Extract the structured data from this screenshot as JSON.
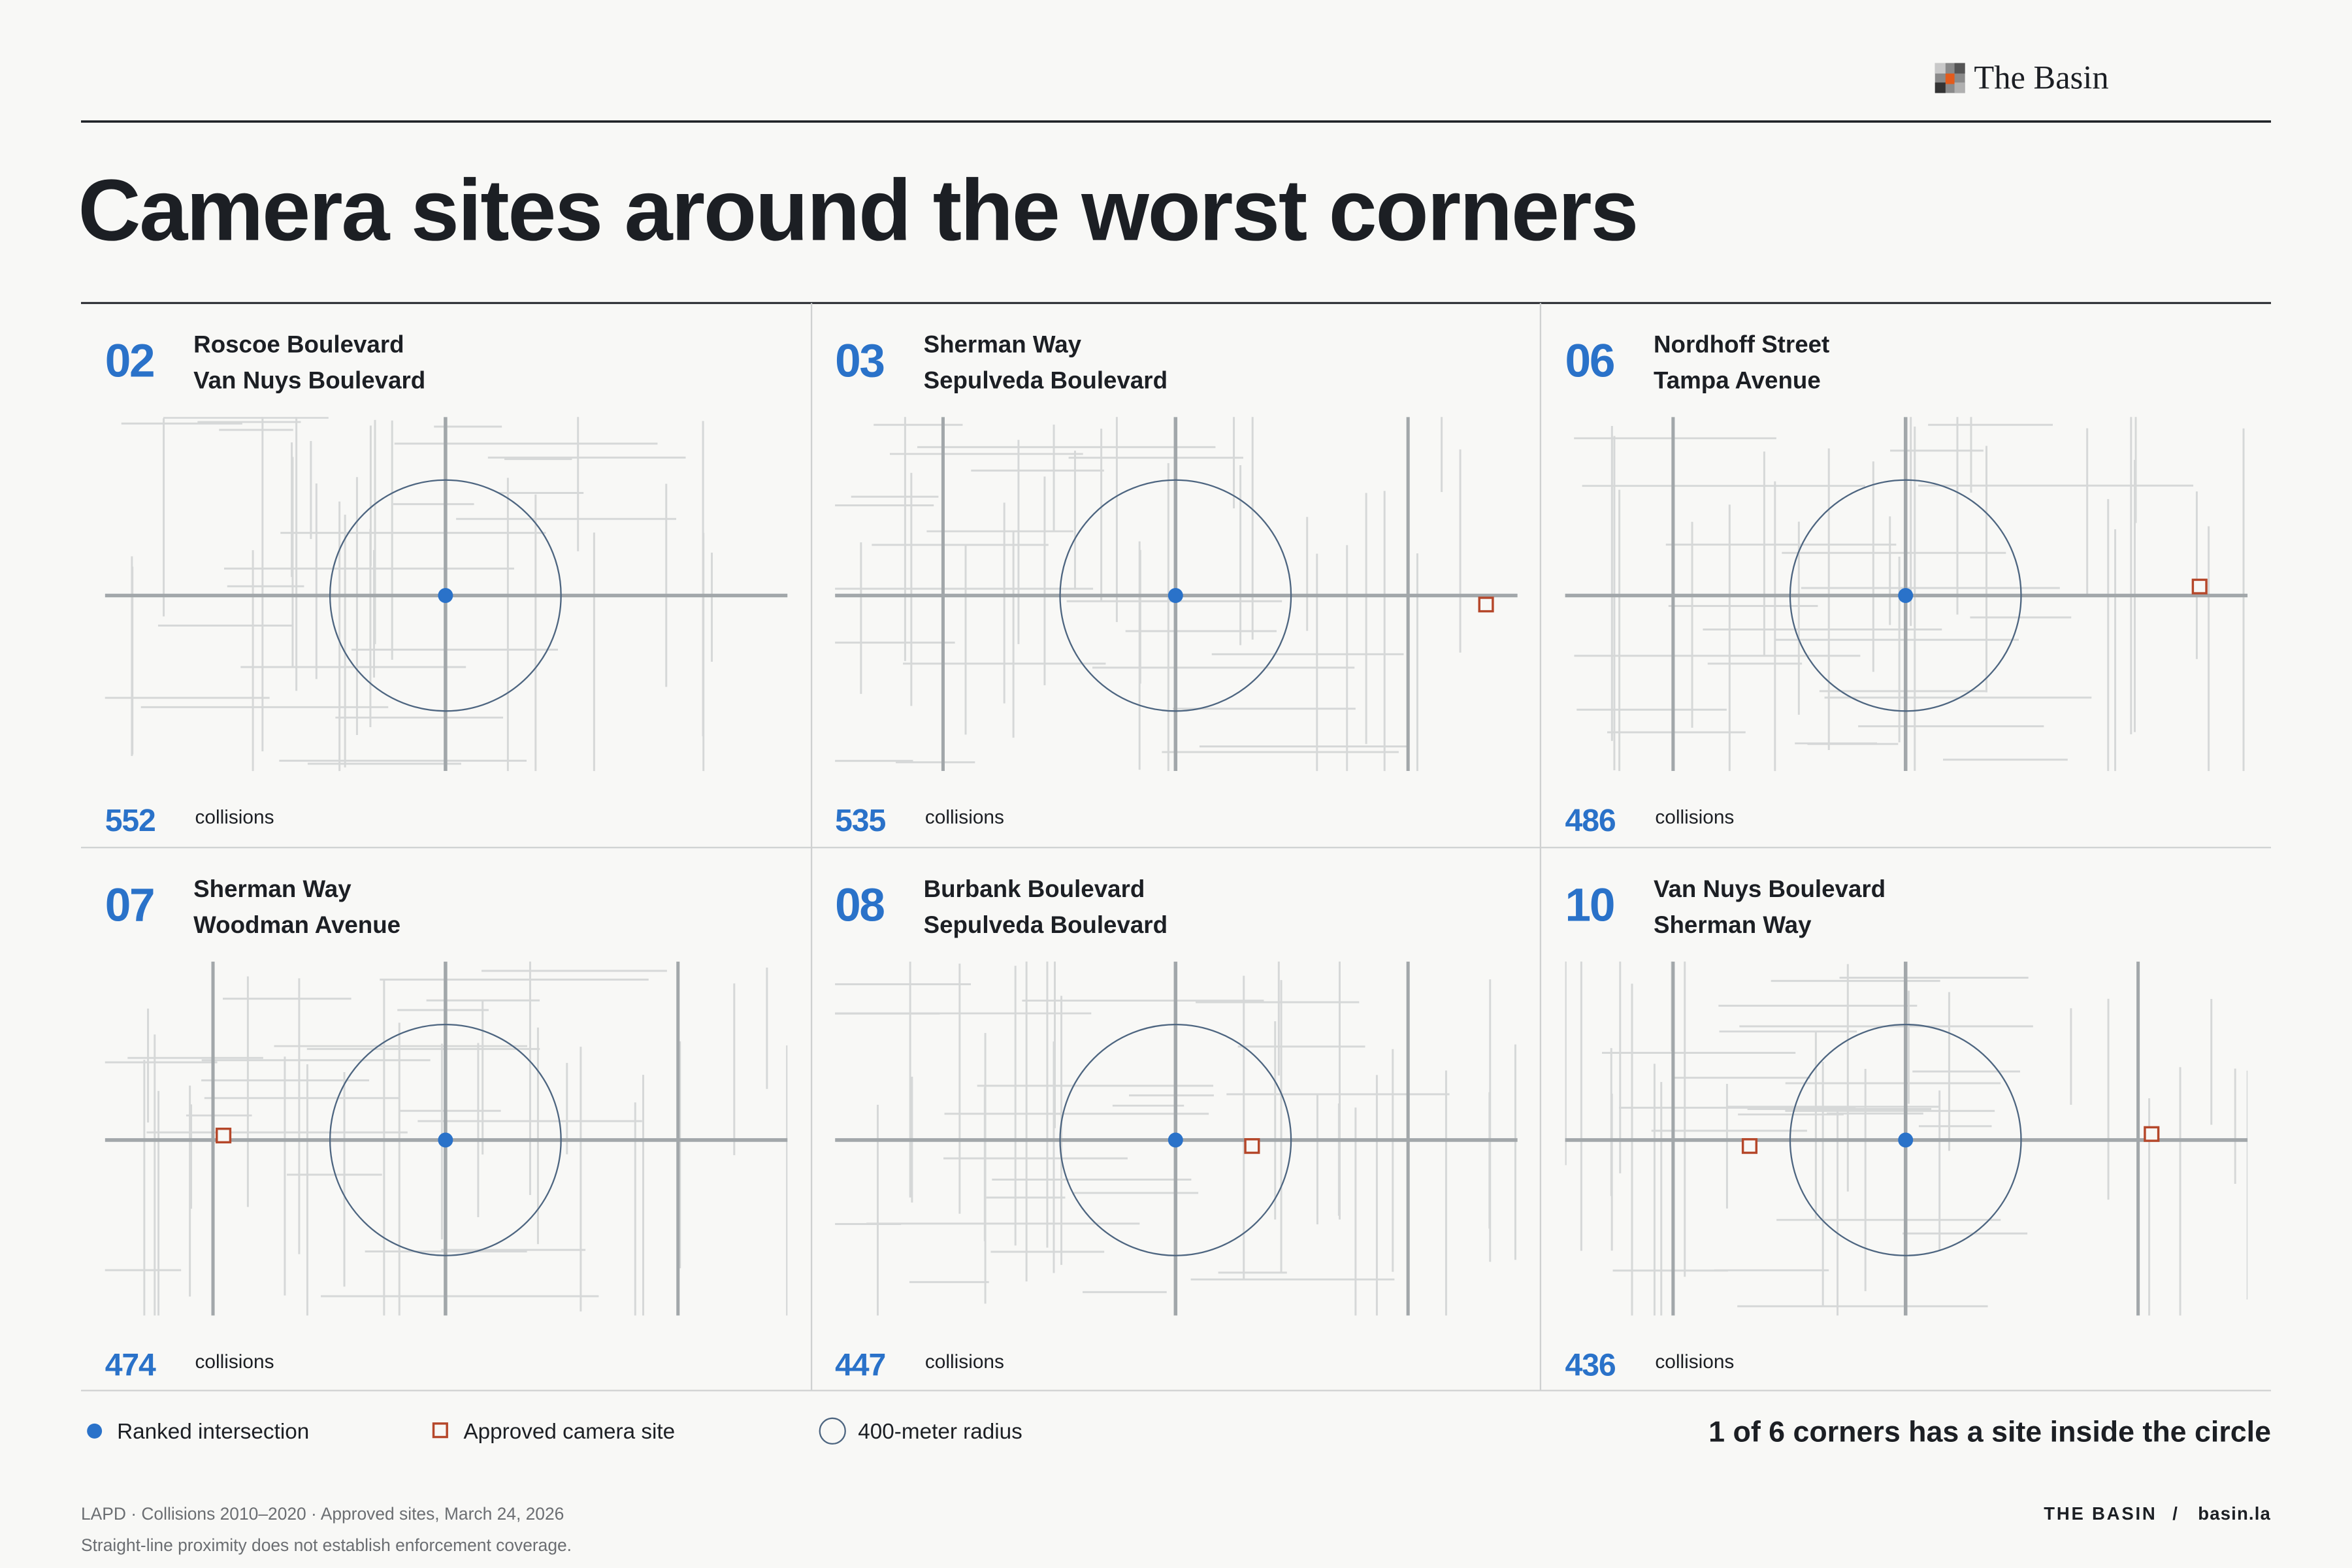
{
  "brand": "The Basin",
  "title": "Camera sites around the worst corners",
  "panels": [
    {
      "rank": "02",
      "street1": "Roscoe Boulevard",
      "street2": "Van Nuys Boulevard",
      "collisions": 552,
      "unit": "collisions"
    },
    {
      "rank": "03",
      "street1": "Sherman Way",
      "street2": "Sepulveda Boulevard",
      "collisions": 535,
      "unit": "collisions"
    },
    {
      "rank": "06",
      "street1": "Nordhoff Street",
      "street2": "Tampa Avenue",
      "collisions": 486,
      "unit": "collisions"
    },
    {
      "rank": "07",
      "street1": "Sherman Way",
      "street2": "Woodman Avenue",
      "collisions": 474,
      "unit": "collisions"
    },
    {
      "rank": "08",
      "street1": "Burbank Boulevard",
      "street2": "Sepulveda Boulevard",
      "collisions": 447,
      "unit": "collisions"
    },
    {
      "rank": "10",
      "street1": "Van Nuys Boulevard",
      "street2": "Sherman Way",
      "collisions": 436,
      "unit": "collisions"
    }
  ],
  "legend": [
    "Ranked intersection",
    "Approved camera site",
    "400-meter radius"
  ],
  "summary": "1 of 6 corners has a site inside the circle",
  "footer": {
    "source": "LAPD · Collisions 2010–2020 · Approved sites, March 24, 2026",
    "note": "Straight-line proximity does not establish enforcement coverage.",
    "brand": "THE BASIN",
    "separator": "/",
    "url": "basin.la"
  }
}
